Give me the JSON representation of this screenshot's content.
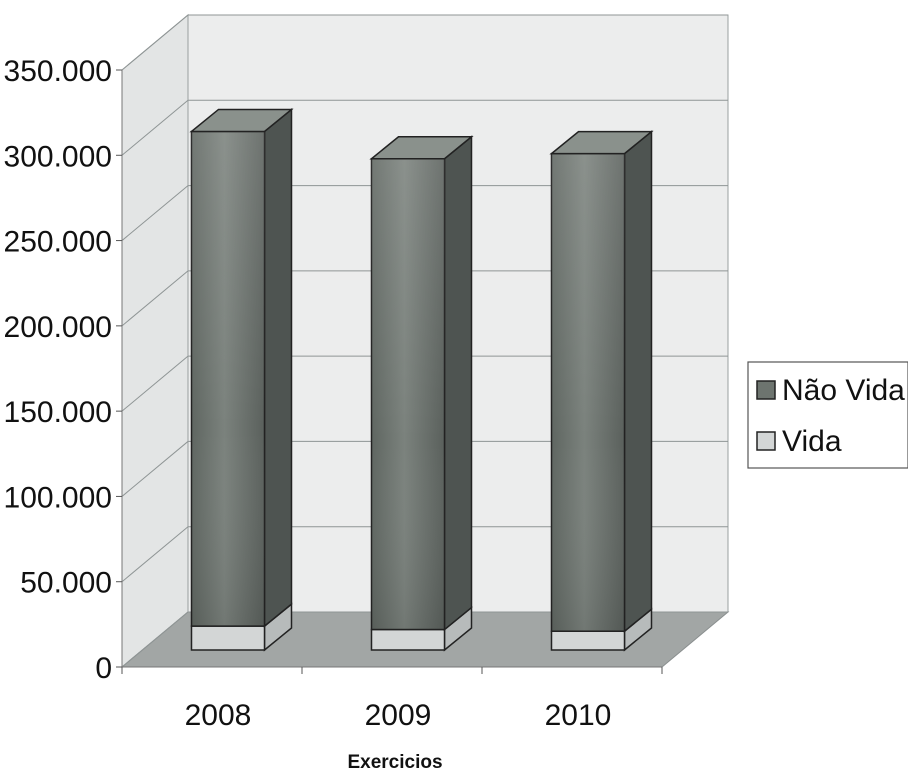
{
  "chart_data": {
    "type": "bar",
    "stacked": true,
    "style": "3d-column",
    "title": "",
    "xlabel": "Exercicios",
    "ylabel": "",
    "categories": [
      "2008",
      "2009",
      "2010"
    ],
    "series": [
      {
        "name": "Vida",
        "values": [
          14000,
          12000,
          11000
        ]
      },
      {
        "name": "Não Vida",
        "values": [
          290000,
          276000,
          280000
        ]
      }
    ],
    "ylim": [
      0,
      350000
    ],
    "yticks": [
      0,
      50000,
      100000,
      150000,
      200000,
      250000,
      300000,
      350000
    ],
    "ytick_labels": [
      "0",
      "50.000",
      "100.000",
      "150.000",
      "200.000",
      "250.000",
      "300.000",
      "350.000"
    ],
    "grid": true,
    "legend_position": "right",
    "legend": [
      {
        "label": "Não Vida",
        "series": "Não Vida"
      },
      {
        "label": "Vida",
        "series": "Vida"
      }
    ],
    "colors": {
      "Não Vida": "#6d746f",
      "Vida": "#d3d6d6",
      "wall": "#eceded",
      "floor": "#a2a6a5"
    }
  }
}
